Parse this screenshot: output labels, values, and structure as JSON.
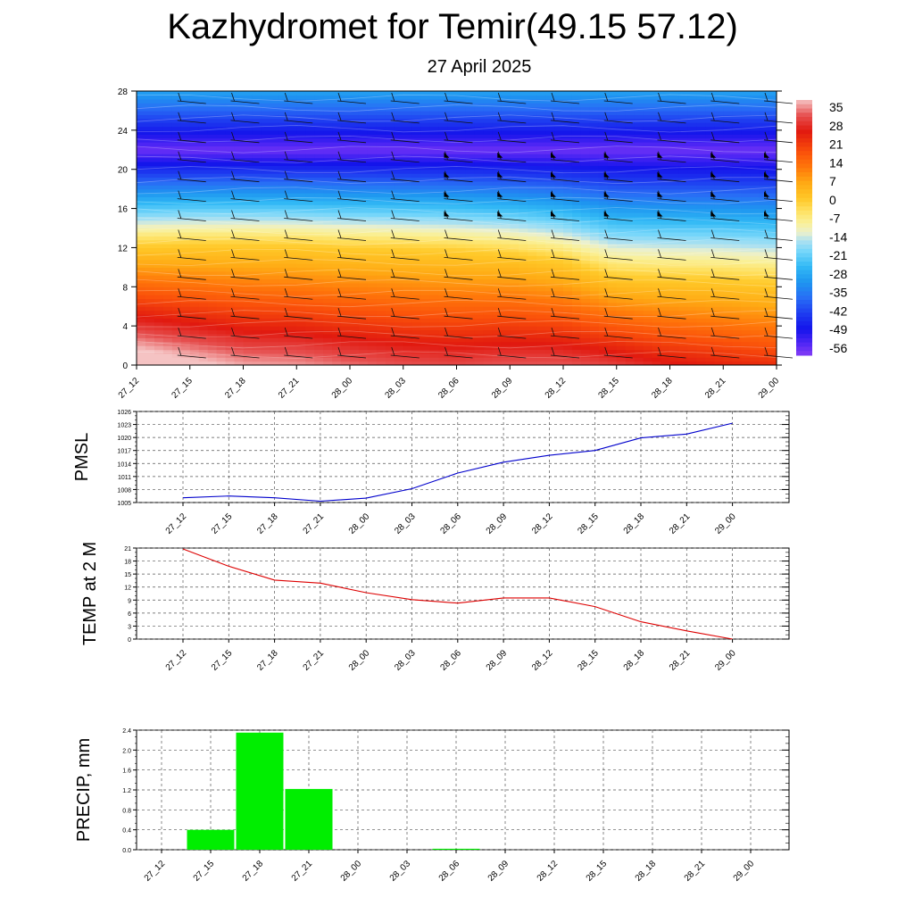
{
  "title": "Kazhydromet for Temir(49.15 57.12)",
  "subtitle": "27 April 2025",
  "time_labels": [
    "27_12",
    "27_15",
    "27_18",
    "27_21",
    "28_00",
    "28_03",
    "28_06",
    "28_09",
    "28_12",
    "28_15",
    "28_18",
    "28_21",
    "29_00"
  ],
  "colors": {
    "pmsl_line": "#0000cc",
    "temp_line": "#dd0000",
    "precip_bar": "#00ee00",
    "grid": "#555555"
  },
  "chart_data": [
    {
      "type": "heatmap",
      "name": "cross-section",
      "x": [
        "27_12",
        "27_15",
        "27_18",
        "27_21",
        "28_00",
        "28_03",
        "28_06",
        "28_09",
        "28_12",
        "28_15",
        "28_18",
        "28_21",
        "29_00"
      ],
      "y_ticks": [
        0,
        4,
        8,
        12,
        16,
        20,
        24,
        28
      ],
      "ylim": [
        0,
        28
      ],
      "colorbar_labels": [
        "35",
        "28",
        "21",
        "14",
        "7",
        "0",
        "-7",
        "-14",
        "-21",
        "-28",
        "-35",
        "-42",
        "-49",
        "-56"
      ],
      "colorbar_range": [
        -60,
        38
      ],
      "freezing_level": [
        12.3,
        12.4,
        12.4,
        12.3,
        12.1,
        12.0,
        11.8,
        11.5,
        10.8,
        9.2,
        9.0,
        8.9,
        8.6
      ],
      "grid": false,
      "wind_barbs": true
    },
    {
      "type": "line",
      "name": "pmsl",
      "ylabel": "PMSL",
      "x": [
        "27_12",
        "27_15",
        "27_18",
        "27_21",
        "28_00",
        "28_03",
        "28_06",
        "28_09",
        "28_12",
        "28_15",
        "28_18",
        "28_21",
        "29_00"
      ],
      "values": [
        1006.1,
        1006.5,
        1006.1,
        1005.3,
        1006.0,
        1008.2,
        1011.8,
        1014.3,
        1015.9,
        1017.0,
        1019.9,
        1020.8,
        1023.3
      ],
      "ylim": [
        1005,
        1026
      ],
      "y_ticks": [
        1005,
        1008,
        1011,
        1014,
        1017,
        1020,
        1023,
        1026
      ],
      "grid": true
    },
    {
      "type": "line",
      "name": "temp",
      "ylabel": "TEMP at 2 M",
      "x": [
        "27_12",
        "27_15",
        "27_18",
        "27_21",
        "28_00",
        "28_03",
        "28_06",
        "28_09",
        "28_12",
        "28_15",
        "28_18",
        "28_21",
        "29_00"
      ],
      "values": [
        20.8,
        16.8,
        13.6,
        12.9,
        10.7,
        9.1,
        8.3,
        9.5,
        9.5,
        7.5,
        4.0,
        1.9,
        0.0
      ],
      "ylim": [
        0,
        21
      ],
      "y_ticks": [
        0,
        3,
        6,
        9,
        12,
        15,
        18,
        21
      ],
      "grid": true
    },
    {
      "type": "bar",
      "name": "precip",
      "ylabel": "PRECIP, mm",
      "x": [
        "27_12",
        "27_15",
        "27_18",
        "27_21",
        "28_00",
        "28_03",
        "28_06",
        "28_09",
        "28_12",
        "28_15",
        "28_18",
        "28_21",
        "29_00"
      ],
      "values": [
        0,
        0.4,
        2.35,
        1.22,
        0,
        0,
        0.02,
        0,
        0,
        0,
        0,
        0,
        0
      ],
      "ylim": [
        0,
        2.4
      ],
      "y_ticks": [
        "0.0",
        "0.4",
        "0.8",
        "1.2",
        "1.6",
        "2.0",
        "2.4"
      ],
      "grid": true
    }
  ]
}
